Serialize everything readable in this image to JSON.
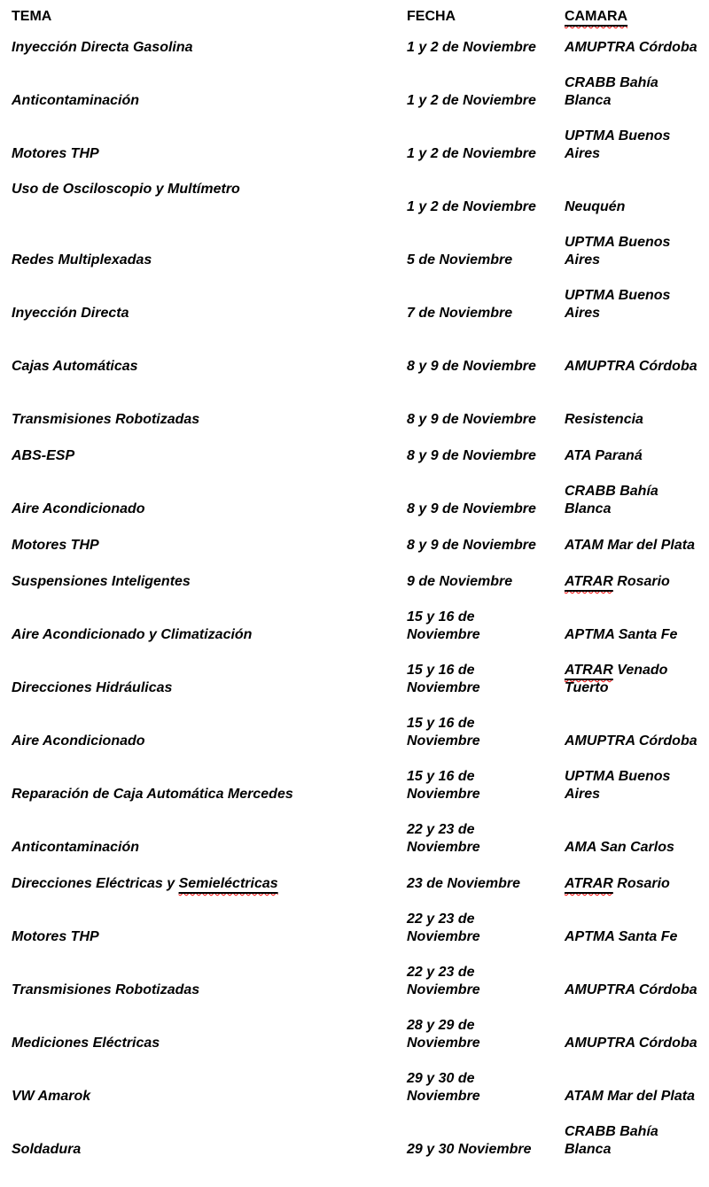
{
  "colors": {
    "text": "#000000",
    "background": "#ffffff",
    "underline": "#000000",
    "misspell_squiggle": "#ff0000"
  },
  "table": {
    "headers": {
      "tema": "TEMA",
      "fecha": "FECHA",
      "camara": "CAMARA"
    },
    "rows": [
      {
        "tema": "Inyección Directa Gasolina",
        "fecha": "1 y 2 de Noviembre",
        "camara": "AMUPTRA Córdoba"
      },
      {
        "tema": "Anticontaminación",
        "fecha": "1 y 2 de Noviembre",
        "camara": "CRABB Bahía Blanca"
      },
      {
        "tema": "Motores THP",
        "fecha": "1 y 2 de Noviembre",
        "camara": "UPTMA Buenos Aires"
      },
      {
        "tema": "Uso de Osciloscopio y Multímetro",
        "fecha": "1 y 2 de Noviembre",
        "camara": "Neuquén"
      },
      {
        "tema": "Redes Multiplexadas",
        "fecha": "5 de Noviembre",
        "camara": "UPTMA Buenos Aires"
      },
      {
        "tema": "Inyección Directa",
        "fecha": "7 de Noviembre",
        "camara": "UPTMA Buenos Aires"
      },
      {
        "tema": "Cajas Automáticas",
        "fecha": "8 y 9 de Noviembre",
        "camara": "AMUPTRA Córdoba"
      },
      {
        "tema": "Transmisiones Robotizadas",
        "fecha": "8 y 9 de Noviembre",
        "camara": "Resistencia"
      },
      {
        "tema": "ABS-ESP",
        "fecha": "8 y 9 de Noviembre",
        "camara": "ATA Paraná"
      },
      {
        "tema": "Aire Acondicionado",
        "fecha": "8 y 9 de Noviembre",
        "camara": "CRABB Bahía Blanca"
      },
      {
        "tema": "Motores THP",
        "fecha": "8 y 9 de Noviembre",
        "camara": "ATAM Mar del Plata"
      },
      {
        "tema": "Suspensiones Inteligentes",
        "fecha": "9 de Noviembre",
        "camara_mark": "ATRAR",
        "camara_rest": " Rosario"
      },
      {
        "tema": "Aire Acondicionado y Climatización",
        "fecha": "15 y 16 de Noviembre",
        "camara": "APTMA Santa Fe"
      },
      {
        "tema": "Direcciones Hidráulicas",
        "fecha": "15 y 16 de Noviembre",
        "camara_mark": "ATRAR",
        "camara_rest": " Venado Tuerto"
      },
      {
        "tema": "Aire Acondicionado",
        "fecha": "15 y 16 de Noviembre",
        "camara": "AMUPTRA Córdoba"
      },
      {
        "tema": "Reparación de Caja Automática Mercedes",
        "fecha": "15 y 16 de Noviembre",
        "camara": "UPTMA Buenos Aires"
      },
      {
        "tema": "Anticontaminación",
        "fecha": "22 y 23 de Noviembre",
        "camara": "AMA San Carlos"
      },
      {
        "tema_pre": "Direcciones Eléctricas y ",
        "tema_mark": "Semieléctricas",
        "fecha": "23 de Noviembre",
        "camara_mark": "ATRAR",
        "camara_rest": " Rosario"
      },
      {
        "tema": "Motores THP",
        "fecha": "22 y 23 de Noviembre",
        "camara": "APTMA Santa Fe"
      },
      {
        "tema": "Transmisiones Robotizadas",
        "fecha": "22 y 23 de Noviembre",
        "camara": "AMUPTRA Córdoba"
      },
      {
        "tema": "Mediciones Eléctricas",
        "fecha": "28 y 29 de Noviembre",
        "camara": "AMUPTRA Córdoba"
      },
      {
        "tema": "VW Amarok",
        "fecha": "29 y 30 de Noviembre",
        "camara": "ATAM Mar del Plata"
      },
      {
        "tema": "Soldadura",
        "fecha": "29 y 30 Noviembre",
        "camara": "CRABB Bahía Blanca"
      }
    ]
  }
}
